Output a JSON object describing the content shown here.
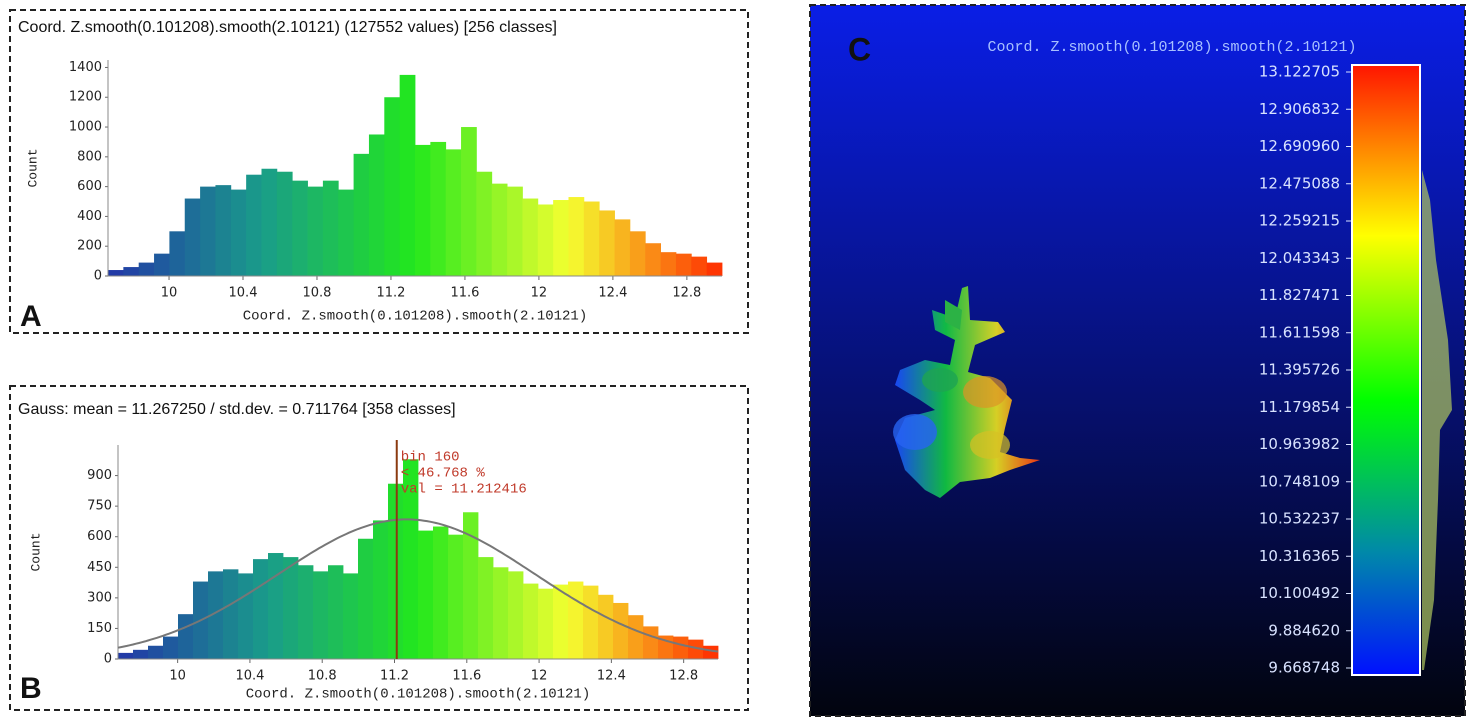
{
  "chart_data": [
    {
      "type": "histogram",
      "panel_label": "A",
      "title": "Coord. Z.smooth(0.101208).smooth(2.10121) (127552 values)  [256 classes]",
      "xlabel": "Coord. Z.smooth(0.101208).smooth(2.10121)",
      "ylabel": "Count",
      "bins": [
        9.67,
        9.753,
        9.836,
        9.919,
        10.002,
        10.085,
        10.168,
        10.251,
        10.334,
        10.417,
        10.5,
        10.583,
        10.666,
        10.749,
        10.832,
        10.915,
        10.998,
        11.081,
        11.164,
        11.247,
        11.33,
        11.413,
        11.496,
        11.579,
        11.662,
        11.745,
        11.828,
        11.911,
        11.994,
        12.077,
        12.16,
        12.243,
        12.326,
        12.409,
        12.492,
        12.575,
        12.658,
        12.741,
        12.824,
        12.907,
        12.99
      ],
      "values": [
        40,
        60,
        90,
        150,
        300,
        520,
        600,
        610,
        580,
        680,
        720,
        700,
        640,
        600,
        640,
        580,
        820,
        950,
        1200,
        1350,
        880,
        900,
        850,
        1000,
        700,
        620,
        600,
        520,
        480,
        510,
        530,
        500,
        440,
        380,
        300,
        220,
        160,
        150,
        130,
        90
      ],
      "xlim": [
        9.67,
        12.99
      ],
      "ylim": [
        0,
        1450
      ],
      "xticks": [
        10,
        10.4,
        10.8,
        11.2,
        11.6,
        12,
        12.4,
        12.8
      ],
      "yticks": [
        0,
        200,
        400,
        600,
        800,
        1000,
        1200,
        1400
      ],
      "colormap": [
        "#2236a8",
        "#1a9c8a",
        "#22e81c",
        "#f4ff30",
        "#ff2a00"
      ]
    },
    {
      "type": "histogram",
      "panel_label": "B",
      "title": "Gauss: mean = 11.267250 / std.dev. = 0.711764 [358 classes]",
      "xlabel": "Coord. Z.smooth(0.101208).smooth(2.10121)",
      "ylabel": "Count",
      "bins": [
        9.67,
        9.753,
        9.836,
        9.919,
        10.002,
        10.085,
        10.168,
        10.251,
        10.334,
        10.417,
        10.5,
        10.583,
        10.666,
        10.749,
        10.832,
        10.915,
        10.998,
        11.081,
        11.164,
        11.247,
        11.33,
        11.413,
        11.496,
        11.579,
        11.662,
        11.745,
        11.828,
        11.911,
        11.994,
        12.077,
        12.16,
        12.243,
        12.326,
        12.409,
        12.492,
        12.575,
        12.658,
        12.741,
        12.824,
        12.907,
        12.99
      ],
      "values": [
        30,
        45,
        65,
        110,
        220,
        380,
        430,
        440,
        420,
        490,
        520,
        500,
        460,
        430,
        460,
        420,
        590,
        680,
        860,
        980,
        630,
        650,
        610,
        720,
        500,
        450,
        430,
        370,
        345,
        365,
        380,
        360,
        315,
        275,
        215,
        160,
        115,
        110,
        95,
        65
      ],
      "xlim": [
        9.67,
        12.99
      ],
      "ylim": [
        0,
        1050
      ],
      "xticks": [
        10,
        10.4,
        10.8,
        11.2,
        11.6,
        12,
        12.4,
        12.8
      ],
      "yticks": [
        0,
        150,
        300,
        450,
        600,
        750,
        900
      ],
      "colormap": [
        "#2236a8",
        "#1a9c8a",
        "#22e81c",
        "#f4ff30",
        "#ff2a00"
      ],
      "gauss": {
        "mean": 11.26725,
        "std": 0.711764,
        "peak": 685,
        "color": "#777777"
      },
      "cursor": {
        "value": 11.212416,
        "color": "#8b3a10",
        "labels": [
          "bin 160",
          "< 46.768 %",
          "val = 11.212416"
        ]
      }
    }
  ],
  "viewer": {
    "panel_label": "C",
    "title": "Coord. Z.smooth(0.101208).smooth(2.10121)",
    "scale_lim": [
      9.668748,
      13.122705
    ],
    "scale_ticks": [
      13.122705,
      12.906832,
      {
        "value": 12.69096,
        "label": "12.690960"
      },
      12.475088,
      12.259215,
      12.043343,
      11.827471,
      11.611598,
      11.395726,
      11.179854,
      10.963982,
      10.748109,
      10.532237,
      10.316365,
      10.100492,
      {
        "value": 9.88462,
        "label": "9.884620"
      },
      9.668748
    ]
  }
}
